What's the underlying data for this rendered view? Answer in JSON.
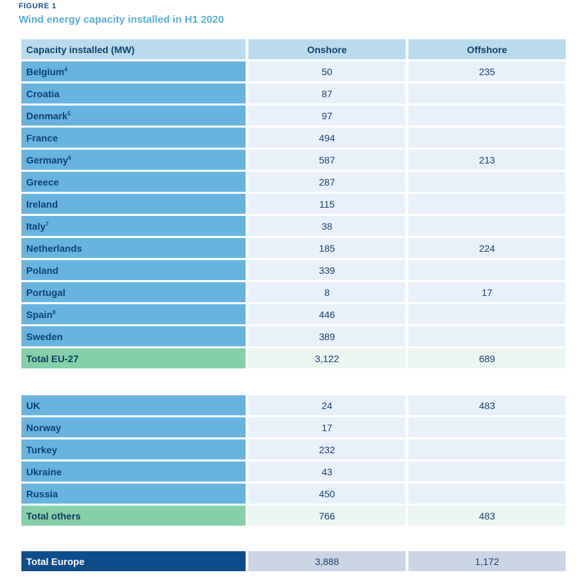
{
  "figure": {
    "label": "FIGURE 1",
    "title": "Wind energy capacity installed in H1 2020"
  },
  "header": {
    "col1": "Capacity installed (MW)",
    "col2": "Onshore",
    "col3": "Offshore"
  },
  "eu_rows": [
    {
      "name": "Belgium",
      "note": "4",
      "onshore": "50",
      "offshore": "235"
    },
    {
      "name": "Croatia",
      "note": "",
      "onshore": "87",
      "offshore": ""
    },
    {
      "name": "Denmark",
      "note": "5",
      "onshore": "97",
      "offshore": ""
    },
    {
      "name": "France",
      "note": "",
      "onshore": "494",
      "offshore": ""
    },
    {
      "name": "Germany",
      "note": "6",
      "onshore": "587",
      "offshore": "213"
    },
    {
      "name": "Greece",
      "note": "",
      "onshore": "287",
      "offshore": ""
    },
    {
      "name": "Ireland",
      "note": "",
      "onshore": "115",
      "offshore": ""
    },
    {
      "name": "Italy",
      "note": "7",
      "onshore": "38",
      "offshore": ""
    },
    {
      "name": "Netherlands",
      "note": "",
      "onshore": "185",
      "offshore": "224"
    },
    {
      "name": "Poland",
      "note": "",
      "onshore": "339",
      "offshore": ""
    },
    {
      "name": "Portugal",
      "note": "",
      "onshore": "8",
      "offshore": "17"
    },
    {
      "name": "Spain",
      "note": "8",
      "onshore": "446",
      "offshore": ""
    },
    {
      "name": "Sweden",
      "note": "",
      "onshore": "389",
      "offshore": ""
    }
  ],
  "eu_total": {
    "name": "Total EU-27",
    "onshore": "3,122",
    "offshore": "689"
  },
  "other_rows": [
    {
      "name": "UK",
      "onshore": "24",
      "offshore": "483"
    },
    {
      "name": "Norway",
      "onshore": "17",
      "offshore": ""
    },
    {
      "name": "Turkey",
      "onshore": "232",
      "offshore": ""
    },
    {
      "name": "Ukraine",
      "onshore": "43",
      "offshore": ""
    },
    {
      "name": "Russia",
      "onshore": "450",
      "offshore": ""
    }
  ],
  "others_total": {
    "name": "Total others",
    "onshore": "766",
    "offshore": "483"
  },
  "europe_total": {
    "name": "Total Europe",
    "onshore": "3,888",
    "offshore": "1,172"
  }
}
